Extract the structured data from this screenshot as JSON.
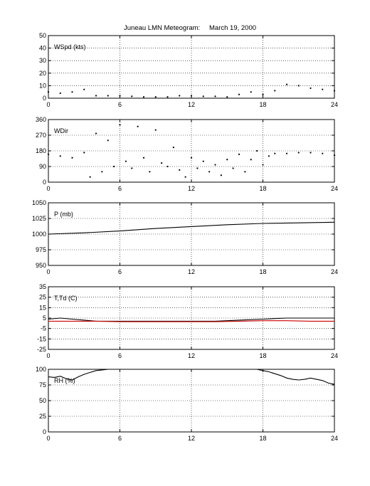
{
  "figure": {
    "title_station": "Juneau LMN Meteogram:",
    "title_date": "March 19, 2000"
  },
  "chart_data": [
    {
      "type": "scatter",
      "label": "WSpd (kts)",
      "x_ticks": [
        "0",
        "6",
        "12",
        "18",
        "24"
      ],
      "y_ticks": [
        "0",
        "10",
        "20",
        "30",
        "40",
        "50"
      ],
      "xlim": [
        0,
        24
      ],
      "ylim": [
        0,
        50
      ],
      "grid": true,
      "series": [
        {
          "color": "#000000",
          "x": [
            0,
            1,
            2,
            3,
            4,
            5,
            6,
            7,
            8,
            9,
            10,
            11,
            12,
            13,
            14,
            15,
            16,
            17,
            18,
            19,
            20,
            21,
            22,
            23,
            24
          ],
          "y": [
            5,
            4,
            5,
            7,
            2,
            2,
            2,
            1.5,
            1,
            1,
            1,
            2,
            2,
            1.5,
            1.5,
            1,
            3,
            5,
            3,
            6,
            11,
            10,
            8,
            7,
            6
          ]
        }
      ]
    },
    {
      "type": "scatter",
      "label": "WDir",
      "x_ticks": [
        "0",
        "6",
        "12",
        "18",
        "24"
      ],
      "y_ticks": [
        "0",
        "90",
        "180",
        "270",
        "360"
      ],
      "xlim": [
        0,
        24
      ],
      "ylim": [
        0,
        360
      ],
      "grid": true,
      "series": [
        {
          "color": "#000000",
          "x": [
            0,
            1,
            2,
            3,
            3.5,
            4,
            4.5,
            5,
            5.5,
            6,
            6.5,
            7,
            7.5,
            8,
            8.5,
            9,
            9.5,
            10,
            10.5,
            11,
            11.5,
            12,
            12.5,
            13,
            13.5,
            14,
            14.5,
            15,
            15.5,
            16,
            16.5,
            17,
            17.5,
            18,
            18.5,
            19,
            20,
            21,
            22,
            23,
            24
          ],
          "y": [
            160,
            150,
            140,
            170,
            30,
            280,
            60,
            240,
            90,
            330,
            120,
            80,
            320,
            140,
            60,
            300,
            110,
            90,
            200,
            70,
            30,
            140,
            80,
            120,
            60,
            100,
            40,
            130,
            80,
            160,
            60,
            130,
            180,
            100,
            150,
            165,
            165,
            170,
            170,
            165,
            155
          ]
        }
      ]
    },
    {
      "type": "line",
      "label": "P (mb)",
      "x_ticks": [
        "0",
        "6",
        "12",
        "18",
        "24"
      ],
      "y_ticks": [
        "950",
        "975",
        "1000",
        "1025",
        "1050"
      ],
      "xlim": [
        0,
        24
      ],
      "ylim": [
        950,
        1050
      ],
      "grid": true,
      "series": [
        {
          "color": "#000000",
          "x": [
            0,
            3,
            6,
            9,
            12,
            15,
            18,
            21,
            24
          ],
          "y": [
            1000,
            1002,
            1005,
            1009,
            1012,
            1015,
            1017,
            1018,
            1019
          ]
        }
      ]
    },
    {
      "type": "line",
      "label": "T,Td (C)",
      "x_ticks": [
        "0",
        "6",
        "12",
        "18",
        "24"
      ],
      "y_ticks": [
        "-25",
        "-15",
        "-5",
        "5",
        "15",
        "25",
        "35"
      ],
      "xlim": [
        0,
        24
      ],
      "ylim": [
        -25,
        35
      ],
      "grid": true,
      "series": [
        {
          "color": "#000000",
          "x": [
            0,
            1,
            2,
            3,
            4,
            6,
            8,
            10,
            12,
            14,
            16,
            18,
            19,
            20,
            22,
            24
          ],
          "y": [
            4,
            5,
            4,
            3,
            2,
            2,
            2,
            2,
            2,
            2,
            3,
            4,
            4.5,
            5,
            5,
            5
          ]
        },
        {
          "color": "#cc0000",
          "x": [
            0,
            2,
            4,
            6,
            8,
            10,
            12,
            14,
            16,
            18,
            20,
            22,
            24
          ],
          "y": [
            2,
            2,
            2,
            1.5,
            1.5,
            1.5,
            1.5,
            1.5,
            2,
            2.5,
            2.5,
            2,
            2
          ]
        }
      ]
    },
    {
      "type": "line",
      "label": "RH (%)",
      "x_ticks": [
        "0",
        "6",
        "12",
        "18",
        "24"
      ],
      "y_ticks": [
        "0",
        "25",
        "50",
        "75",
        "100"
      ],
      "xlim": [
        0,
        24
      ],
      "ylim": [
        0,
        100
      ],
      "grid": true,
      "series": [
        {
          "color": "#000000",
          "x": [
            0,
            0.5,
            1,
            1.5,
            2,
            2.5,
            3,
            3.5,
            4,
            4.5,
            5,
            6,
            8,
            10,
            12,
            14,
            16,
            17,
            17.5,
            18,
            18.5,
            19,
            19.5,
            20,
            20.5,
            21,
            21.5,
            22,
            22.5,
            23,
            23.5,
            24
          ],
          "y": [
            88,
            87,
            89,
            85,
            83,
            88,
            92,
            95,
            98,
            99,
            100,
            100,
            100,
            100,
            100,
            100,
            100,
            100,
            100,
            98,
            96,
            93,
            90,
            86,
            84,
            83,
            84,
            86,
            84,
            82,
            78,
            76
          ]
        }
      ]
    }
  ]
}
